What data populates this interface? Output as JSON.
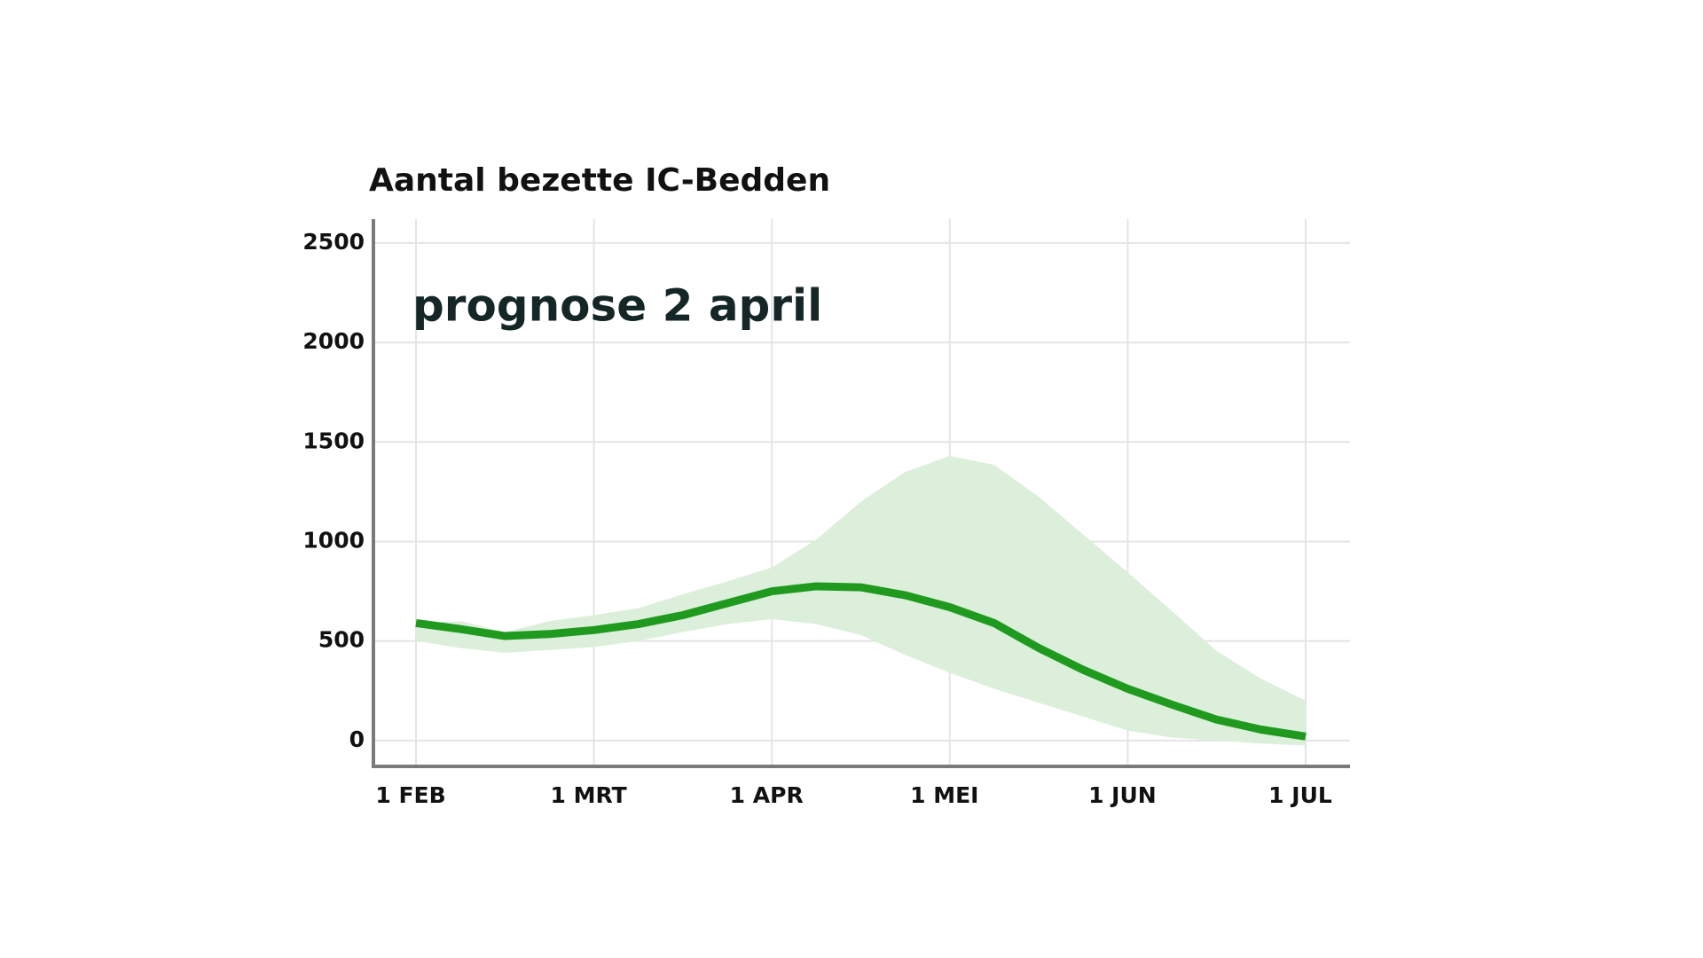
{
  "chart_data": {
    "type": "line",
    "title": "Aantal bezette IC-Bedden",
    "annotation": "prognose 2 april",
    "categories": [
      "1 FEB",
      null,
      null,
      null,
      "1 MRT",
      null,
      null,
      null,
      "1 APR",
      null,
      null,
      null,
      "1 MEI",
      null,
      null,
      null,
      "1 JUN",
      null,
      null,
      null,
      "1 JUL"
    ],
    "series": [
      {
        "color": "#1f9a1f",
        "values": [
          590,
          560,
          525,
          535,
          555,
          585,
          630,
          690,
          750,
          775,
          770,
          730,
          670,
          590,
          465,
          355,
          260,
          180,
          105,
          55,
          20
        ]
      }
    ],
    "band": {
      "color": "#dcefdb",
      "upper": [
        590,
        600,
        545,
        600,
        630,
        665,
        735,
        800,
        870,
        1010,
        1200,
        1350,
        1430,
        1385,
        1225,
        1035,
        845,
        650,
        450,
        310,
        200
      ],
      "lower": [
        500,
        465,
        440,
        455,
        470,
        500,
        545,
        585,
        610,
        585,
        530,
        430,
        340,
        260,
        190,
        120,
        50,
        15,
        0,
        -15,
        -25
      ]
    },
    "ylim": [
      -130,
      2620
    ],
    "yticks": [
      0,
      500,
      1000,
      1500,
      2000,
      2500
    ],
    "grid": true
  }
}
